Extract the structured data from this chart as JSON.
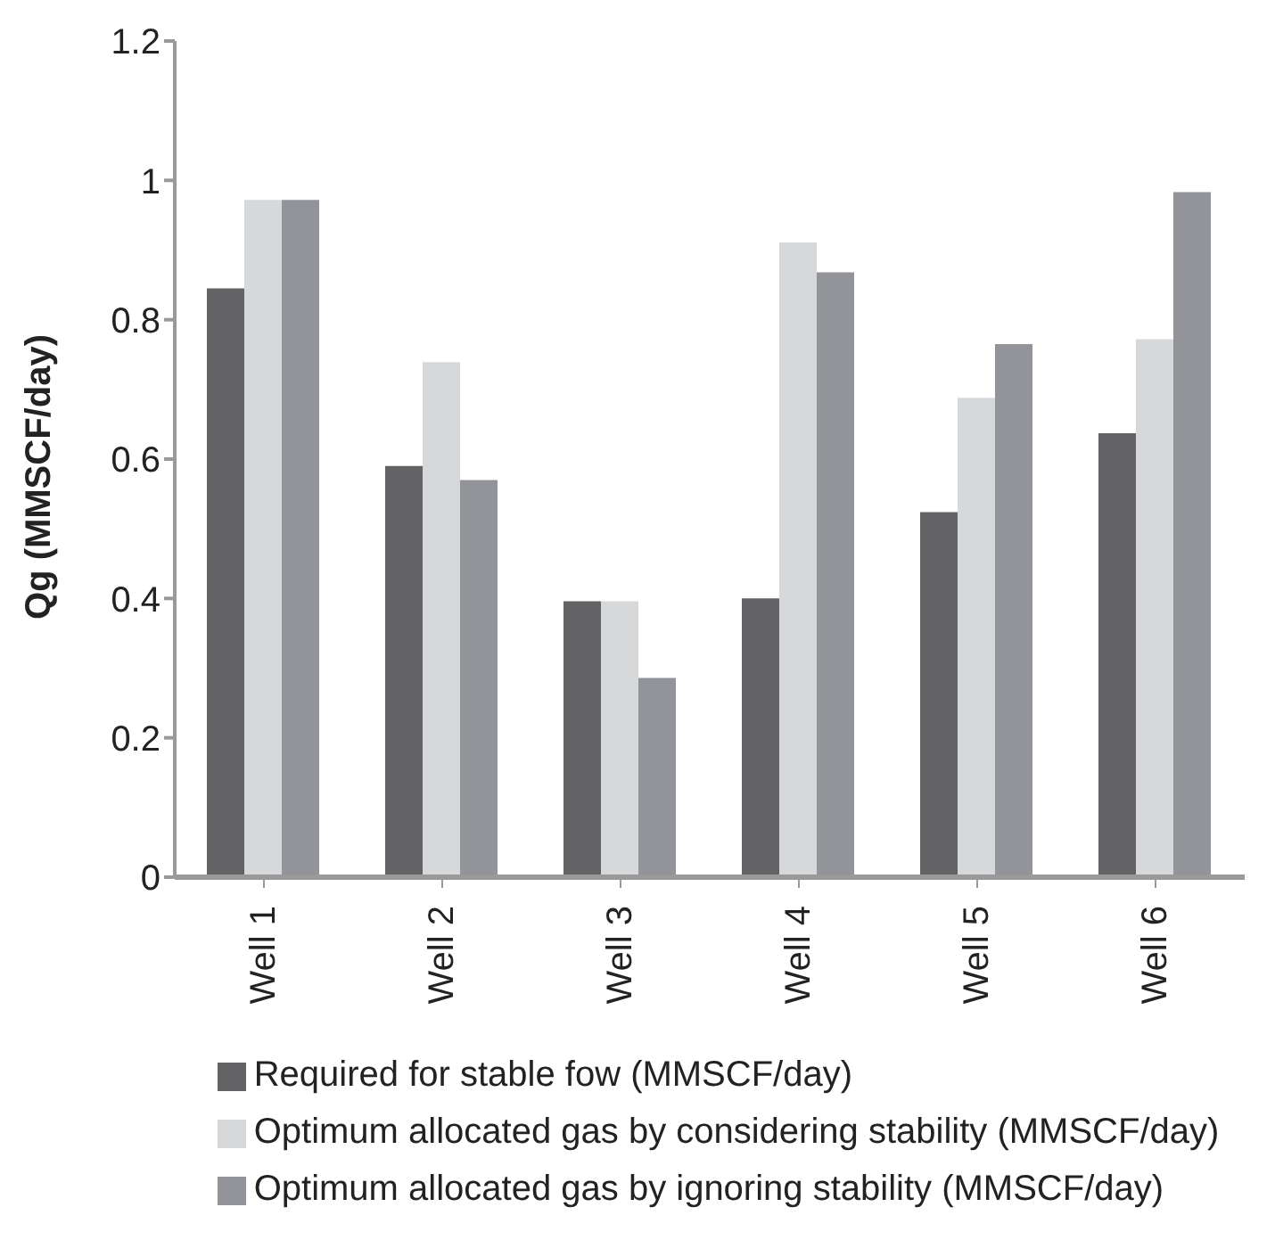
{
  "chart_data": {
    "type": "bar",
    "ylabel": "Qg (MMSCF/day)",
    "categories": [
      "Well 1",
      "Well 2",
      "Well 3",
      "Well 4",
      "Well 5",
      "Well 6"
    ],
    "series": [
      {
        "name": "Required for stable fow (MMSCF/day)",
        "color": "#636365",
        "values": [
          0.845,
          0.59,
          0.396,
          0.4,
          0.524,
          0.637
        ]
      },
      {
        "name": "Optimum allocated gas by considering stability (MMSCF/day)",
        "color": "#d7d8da",
        "values": [
          0.972,
          0.739,
          0.396,
          0.911,
          0.688,
          0.772
        ]
      },
      {
        "name": "Optimum allocated gas by ignoring stability (MMSCF/day)",
        "color": "#939499",
        "values": [
          0.972,
          0.57,
          0.286,
          0.868,
          0.765,
          0.983
        ]
      }
    ],
    "ylim": [
      0,
      1.2
    ],
    "yticks": [
      0,
      0.2,
      0.4,
      0.6,
      0.8,
      1,
      1.2
    ],
    "grid": false,
    "legend": "bottom"
  }
}
